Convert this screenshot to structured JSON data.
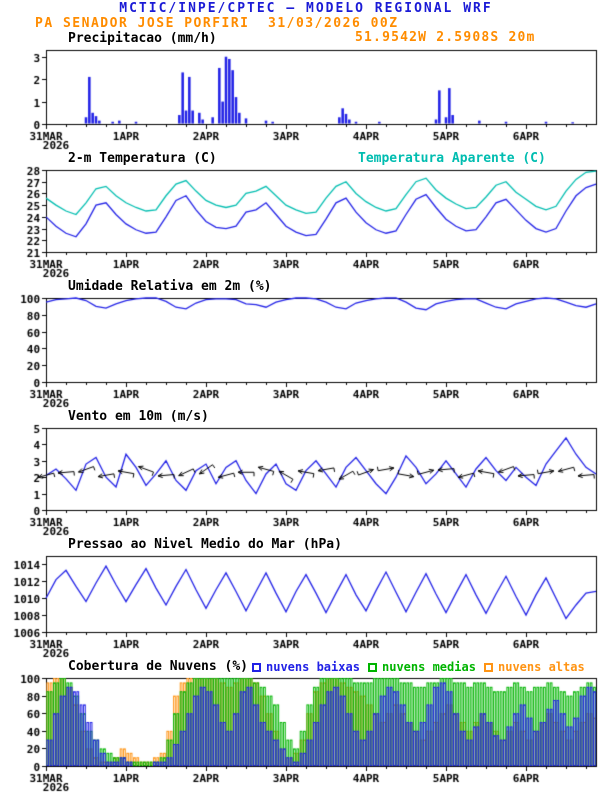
{
  "header": {
    "line1": "MCTIC/INPE/CPTEC — MODELO REGIONAL WRF",
    "station": "PA SENADOR JOSE PORFIRI",
    "run": "31/03/2026 00Z",
    "coords": "51.9542W 2.5908S 20m",
    "colors": {
      "title": "#1b1bd6",
      "accent": "#ff8c00"
    }
  },
  "axis": {
    "x_labels": [
      "31MAR",
      "1APR",
      "2APR",
      "3APR",
      "4APR",
      "5APR",
      "6APR"
    ],
    "label_hours": [
      0,
      24,
      48,
      72,
      96,
      120,
      144
    ],
    "x_year": "2026",
    "hours_total": 165
  },
  "chart_data": [
    {
      "id": "precip",
      "type": "bar",
      "title": "Precipitacao (mm/h)",
      "ylabel": "mm/h",
      "ylim": [
        0,
        3.3
      ],
      "yticks": [
        0,
        1,
        2,
        3
      ],
      "color": "#2222e6",
      "bars": [
        [
          12,
          0.3
        ],
        [
          13,
          2.1
        ],
        [
          14,
          0.5
        ],
        [
          15,
          0.35
        ],
        [
          16,
          0.15
        ],
        [
          20,
          0.1
        ],
        [
          22,
          0.15
        ],
        [
          27,
          0.1
        ],
        [
          40,
          0.4
        ],
        [
          41,
          2.3
        ],
        [
          42,
          0.6
        ],
        [
          43,
          2.1
        ],
        [
          44,
          0.6
        ],
        [
          46,
          0.5
        ],
        [
          47,
          0.2
        ],
        [
          50,
          0.3
        ],
        [
          52,
          2.5
        ],
        [
          53,
          1.0
        ],
        [
          54,
          3.0
        ],
        [
          55,
          2.9
        ],
        [
          56,
          2.4
        ],
        [
          57,
          1.2
        ],
        [
          58,
          0.5
        ],
        [
          60,
          0.25
        ],
        [
          66,
          0.15
        ],
        [
          68,
          0.1
        ],
        [
          88,
          0.3
        ],
        [
          89,
          0.7
        ],
        [
          90,
          0.45
        ],
        [
          91,
          0.2
        ],
        [
          93,
          0.1
        ],
        [
          100,
          0.1
        ],
        [
          117,
          0.2
        ],
        [
          118,
          1.5
        ],
        [
          120,
          0.3
        ],
        [
          121,
          1.6
        ],
        [
          122,
          0.4
        ],
        [
          130,
          0.15
        ],
        [
          138,
          0.1
        ],
        [
          150,
          0.1
        ],
        [
          158,
          0.08
        ]
      ]
    },
    {
      "id": "temp",
      "type": "line",
      "title": "2-m Temperatura (C)",
      "ylim": [
        21,
        28
      ],
      "yticks": [
        21,
        22,
        23,
        24,
        25,
        26,
        27,
        28
      ],
      "step_hours": 3,
      "series": [
        {
          "name": "2-m Temperatura (C)",
          "color": "#2222e6",
          "values": [
            24.0,
            23.2,
            22.6,
            22.3,
            23.4,
            25.0,
            25.2,
            24.2,
            23.4,
            22.9,
            22.6,
            22.7,
            24.0,
            25.4,
            25.8,
            24.6,
            23.6,
            23.1,
            23.0,
            23.2,
            24.4,
            24.6,
            25.2,
            24.2,
            23.2,
            22.7,
            22.4,
            22.5,
            23.8,
            25.2,
            25.6,
            24.4,
            23.5,
            22.9,
            22.6,
            22.8,
            24.2,
            25.5,
            25.9,
            24.8,
            23.8,
            23.2,
            22.8,
            22.9,
            24.0,
            25.2,
            25.5,
            24.6,
            23.7,
            23.0,
            22.7,
            23.0,
            24.5,
            25.8,
            26.5,
            26.8
          ]
        },
        {
          "name": "Temperatura Aparente (C)",
          "color": "#00bdb0",
          "values": [
            25.6,
            25.0,
            24.5,
            24.2,
            25.2,
            26.4,
            26.6,
            25.8,
            25.2,
            24.8,
            24.5,
            24.6,
            25.8,
            26.8,
            27.1,
            26.2,
            25.4,
            25.0,
            24.8,
            25.0,
            26.0,
            26.2,
            26.6,
            25.8,
            25.0,
            24.6,
            24.3,
            24.4,
            25.6,
            26.6,
            27.0,
            26.0,
            25.3,
            24.8,
            24.5,
            24.7,
            25.9,
            27.0,
            27.3,
            26.3,
            25.6,
            25.1,
            24.7,
            24.8,
            25.7,
            26.7,
            27.0,
            26.1,
            25.5,
            24.9,
            24.6,
            24.9,
            26.2,
            27.2,
            27.8,
            27.9
          ]
        }
      ]
    },
    {
      "id": "rh",
      "type": "line",
      "title": "Umidade Relativa em 2m (%)",
      "ylim": [
        0,
        100
      ],
      "yticks": [
        0,
        20,
        40,
        60,
        80,
        100
      ],
      "step_hours": 3,
      "series": [
        {
          "name": "Umidade Relativa em 2m",
          "color": "#2222e6",
          "values": [
            95,
            98,
            99,
            100,
            97,
            90,
            88,
            93,
            97,
            99,
            100,
            100,
            96,
            89,
            87,
            94,
            98,
            99,
            99,
            98,
            93,
            92,
            89,
            95,
            98,
            100,
            100,
            99,
            95,
            89,
            87,
            94,
            97,
            99,
            100,
            100,
            95,
            88,
            86,
            93,
            96,
            98,
            99,
            99,
            94,
            89,
            87,
            93,
            96,
            99,
            100,
            99,
            95,
            91,
            89,
            93
          ]
        }
      ]
    },
    {
      "id": "wind",
      "type": "wind",
      "title": "Vento em 10m (m/s)",
      "ylim": [
        0,
        5
      ],
      "yticks": [
        0,
        1,
        2,
        3,
        4,
        5
      ],
      "step_hours": 3,
      "series": [
        {
          "name": "Vento em 10m",
          "color": "#2222e6",
          "values": [
            2.1,
            2.5,
            1.9,
            1.2,
            2.8,
            3.2,
            2.0,
            1.4,
            3.4,
            2.6,
            1.5,
            2.2,
            3.0,
            1.8,
            1.2,
            2.4,
            2.8,
            1.6,
            2.6,
            3.0,
            1.8,
            1.0,
            2.2,
            2.8,
            1.6,
            1.2,
            2.4,
            3.0,
            2.2,
            1.4,
            2.6,
            3.2,
            2.4,
            1.6,
            1.0,
            2.0,
            3.3,
            2.6,
            1.6,
            2.2,
            3.0,
            2.2,
            1.4,
            2.5,
            3.2,
            2.4,
            1.8,
            2.6,
            2.0,
            1.5,
            2.8,
            3.6,
            4.4,
            3.4,
            2.6,
            2.2
          ]
        }
      ],
      "barbs": {
        "step_hours": 6,
        "y": 2.3,
        "color": "#000000",
        "angles_deg": [
          195,
          185,
          200,
          190,
          170,
          160,
          185,
          205,
          215,
          195,
          180,
          165,
          150,
          170,
          190,
          210,
          20,
          10,
          350,
          15,
          185,
          195,
          170,
          200,
          185,
          10,
          195,
          185
        ]
      }
    },
    {
      "id": "pressure",
      "type": "line",
      "title": "Pressao ao Nivel Medio do Mar (hPa)",
      "ylim": [
        1006,
        1015
      ],
      "yticks": [
        1006,
        1008,
        1010,
        1012,
        1014
      ],
      "step_hours": 3,
      "series": [
        {
          "name": "Pressao ao Nivel Medio do Mar",
          "color": "#2222e6",
          "values": [
            1010.0,
            1012.2,
            1013.3,
            1011.4,
            1009.6,
            1011.8,
            1013.8,
            1011.6,
            1009.6,
            1011.6,
            1013.5,
            1011.2,
            1009.2,
            1011.4,
            1013.4,
            1011.0,
            1008.8,
            1011.0,
            1013.0,
            1010.8,
            1008.5,
            1010.8,
            1013.0,
            1010.6,
            1008.4,
            1010.8,
            1012.8,
            1010.6,
            1008.3,
            1010.6,
            1012.8,
            1010.4,
            1008.5,
            1010.9,
            1013.1,
            1010.7,
            1008.4,
            1010.7,
            1012.9,
            1010.5,
            1008.3,
            1010.6,
            1012.8,
            1010.4,
            1008.2,
            1010.5,
            1012.6,
            1010.2,
            1008.0,
            1010.4,
            1012.4,
            1010.0,
            1007.6,
            1009.2,
            1010.6,
            1010.8
          ]
        }
      ]
    },
    {
      "id": "cloud",
      "type": "cloud",
      "title": "Cobertura de Nuvens (%)",
      "ylim": [
        0,
        100
      ],
      "yticks": [
        0,
        20,
        40,
        60,
        80,
        100
      ],
      "step_hours": 2,
      "series": [
        {
          "name": "nuvens baixas",
          "color": "#2222e6",
          "values": [
            30,
            60,
            80,
            90,
            85,
            70,
            50,
            30,
            15,
            5,
            5,
            10,
            5,
            0,
            0,
            0,
            5,
            5,
            10,
            25,
            40,
            60,
            80,
            90,
            85,
            70,
            50,
            40,
            60,
            85,
            90,
            70,
            50,
            40,
            30,
            20,
            10,
            5,
            15,
            30,
            50,
            70,
            85,
            90,
            80,
            60,
            40,
            30,
            40,
            60,
            80,
            90,
            85,
            70,
            50,
            40,
            50,
            70,
            90,
            95,
            85,
            60,
            40,
            30,
            45,
            60,
            50,
            35,
            30,
            45,
            60,
            70,
            55,
            40,
            50,
            65,
            75,
            60,
            45,
            55,
            80,
            90,
            85
          ]
        },
        {
          "name": "nuvens medias",
          "color": "#00b400",
          "values": [
            85,
            95,
            100,
            95,
            80,
            60,
            40,
            30,
            20,
            15,
            10,
            10,
            5,
            5,
            5,
            5,
            5,
            10,
            30,
            60,
            85,
            95,
            100,
            100,
            100,
            100,
            100,
            100,
            100,
            100,
            100,
            95,
            90,
            80,
            70,
            50,
            30,
            20,
            40,
            70,
            90,
            100,
            100,
            100,
            100,
            100,
            95,
            95,
            95,
            100,
            100,
            100,
            100,
            95,
            95,
            90,
            90,
            95,
            95,
            100,
            100,
            95,
            95,
            90,
            95,
            95,
            90,
            85,
            85,
            90,
            95,
            90,
            85,
            90,
            90,
            95,
            90,
            85,
            80,
            85,
            90,
            95,
            90
          ]
        },
        {
          "name": "nuvens altas",
          "color": "#ff9414",
          "values": [
            95,
            100,
            100,
            90,
            70,
            40,
            20,
            10,
            5,
            5,
            10,
            20,
            15,
            10,
            5,
            5,
            10,
            15,
            40,
            80,
            95,
            100,
            100,
            100,
            100,
            100,
            95,
            90,
            95,
            100,
            100,
            95,
            80,
            60,
            40,
            20,
            10,
            15,
            30,
            60,
            85,
            95,
            100,
            100,
            95,
            90,
            85,
            80,
            70,
            60,
            50,
            60,
            70,
            60,
            50,
            40,
            30,
            40,
            50,
            60,
            70,
            60,
            50,
            40,
            50,
            60,
            50,
            40,
            30,
            40,
            50,
            40,
            30,
            40,
            50,
            60,
            50,
            40,
            30,
            40,
            50,
            60,
            55
          ]
        }
      ]
    }
  ]
}
